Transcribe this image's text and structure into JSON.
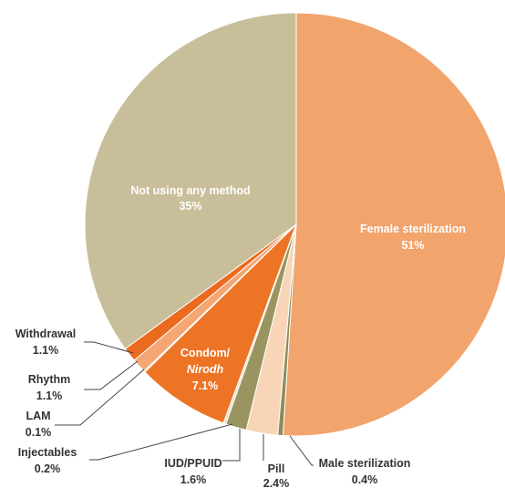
{
  "chart_data": {
    "type": "pie",
    "title": "",
    "unit": "%",
    "slices": [
      {
        "label": "Female sterilization",
        "value": 51,
        "value_label": "51%",
        "color": "#F2A46D",
        "label_style": "inside"
      },
      {
        "label": "Male sterilization",
        "value": 0.4,
        "value_label": "0.4%",
        "color": "#8C8C5A",
        "label_style": "outside"
      },
      {
        "label": "Pill",
        "value": 2.4,
        "value_label": "2.4%",
        "color": "#F9D5B8",
        "label_style": "outside"
      },
      {
        "label": "IUD/PPUID",
        "value": 1.6,
        "value_label": "1.6%",
        "color": "#9A9460",
        "label_style": "outside"
      },
      {
        "label": "Injectables",
        "value": 0.2,
        "value_label": "0.2%",
        "color": "#E8E2C8",
        "label_style": "outside"
      },
      {
        "label": "Condom/",
        "label_italic": "Nirodh",
        "value": 7.1,
        "value_label": "7.1%",
        "color": "#EC7424",
        "label_style": "inside"
      },
      {
        "label": "LAM",
        "value": 0.1,
        "value_label": "0.1%",
        "color": "#D8D0B8",
        "label_style": "outside"
      },
      {
        "label": "Rhythm",
        "value": 1.1,
        "value_label": "1.1%",
        "color": "#F4A773",
        "label_style": "outside"
      },
      {
        "label": "Withdrawal",
        "value": 1.1,
        "value_label": "1.1%",
        "color": "#EA6A1E",
        "label_style": "outside"
      },
      {
        "label": "Not using any method",
        "value": 35,
        "value_label": "35%",
        "color": "#C9BE9A",
        "label_style": "inside"
      }
    ]
  }
}
